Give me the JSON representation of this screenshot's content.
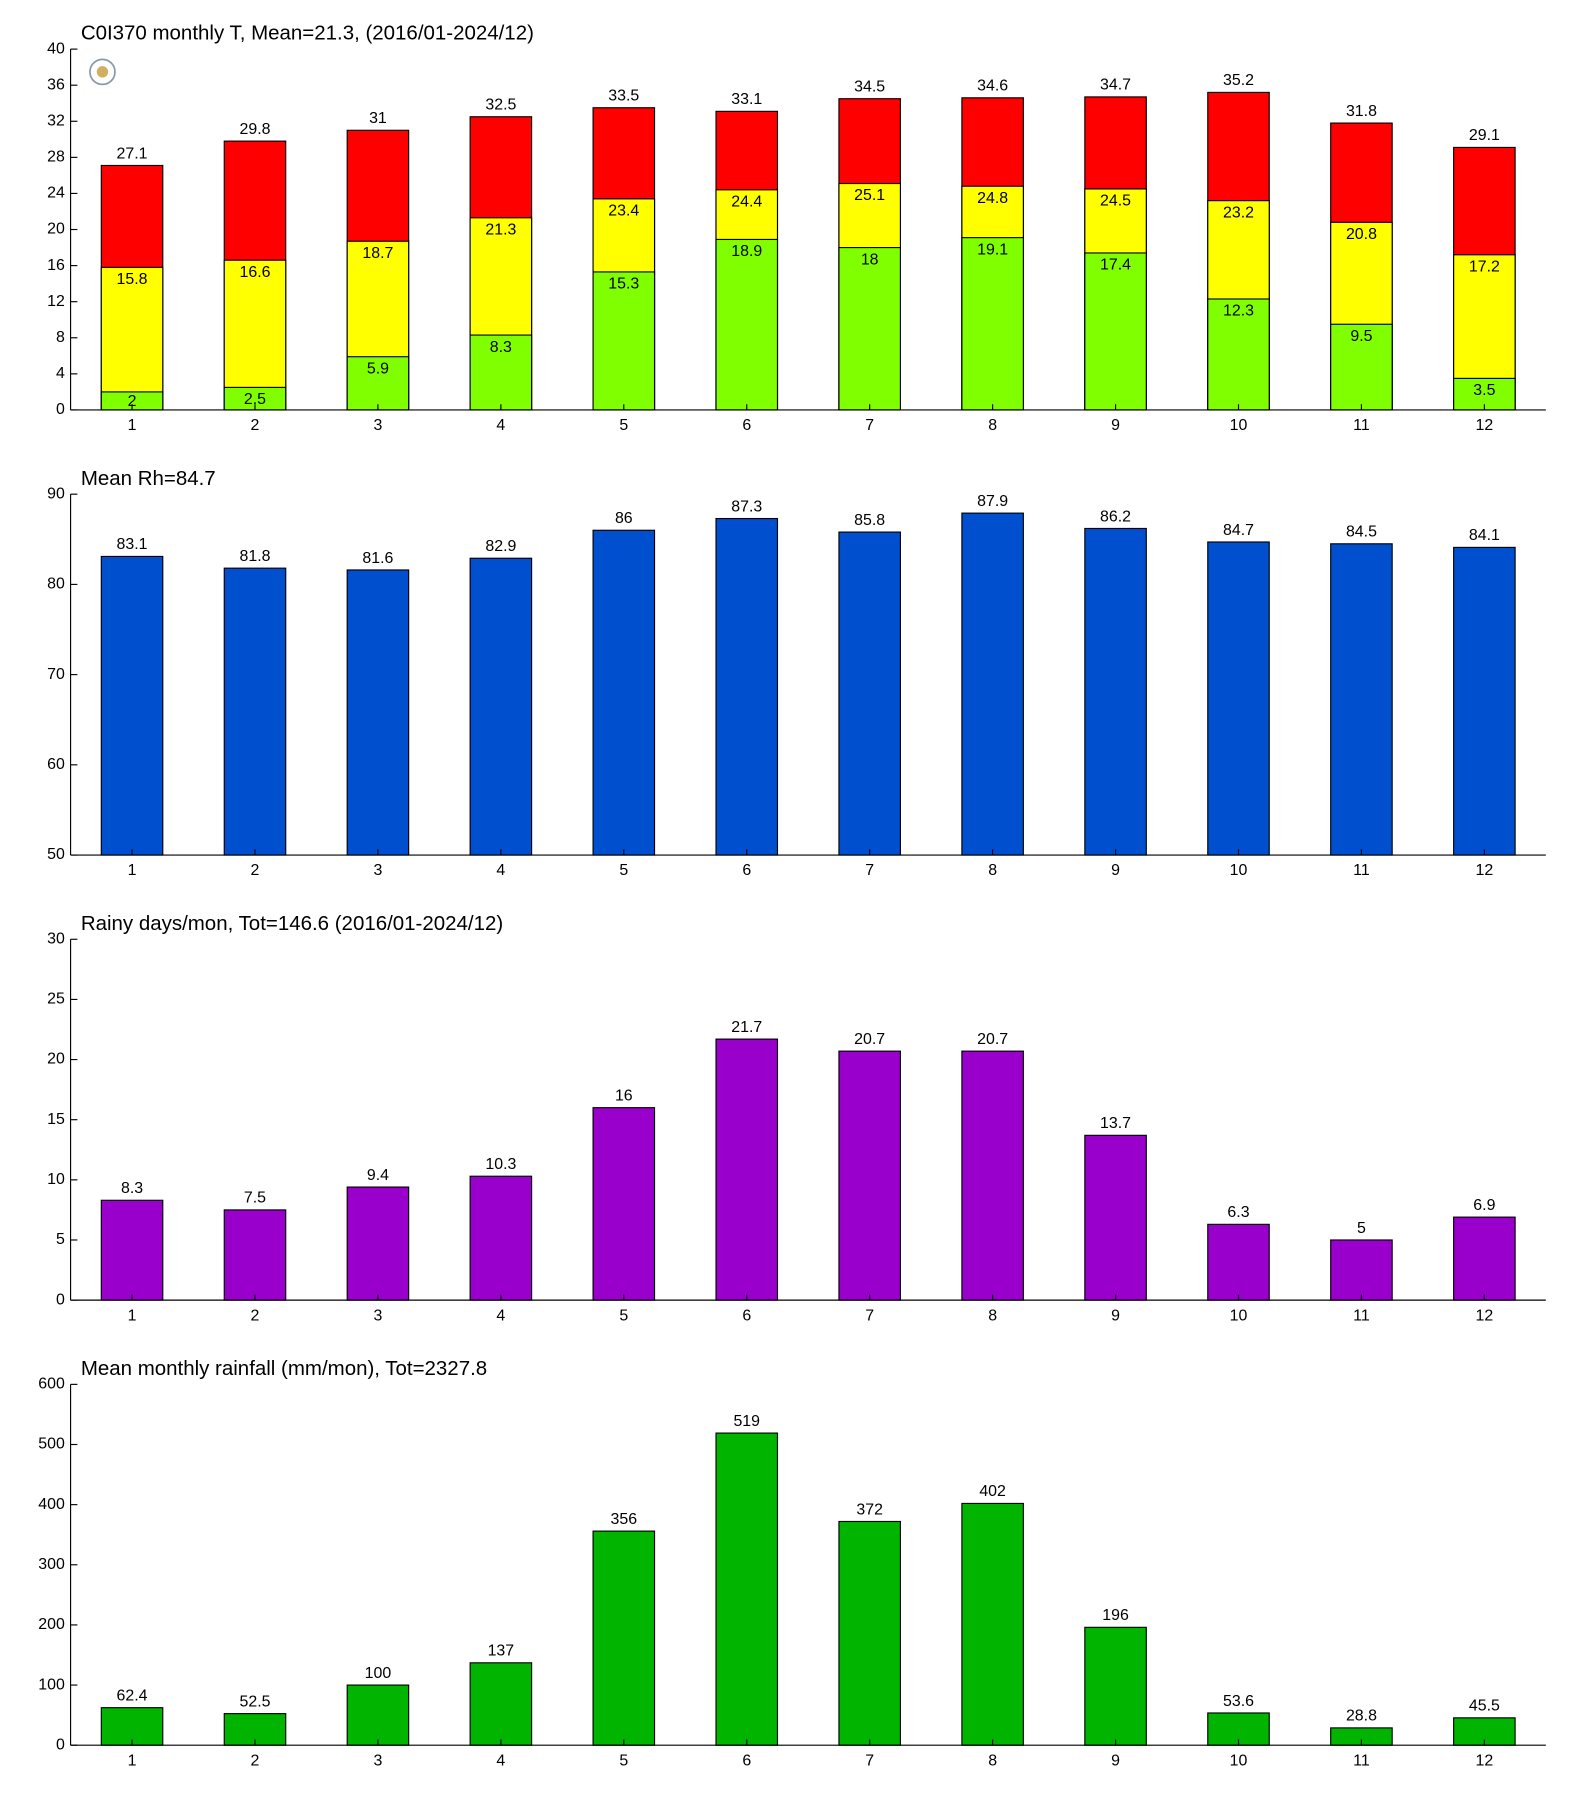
{
  "chart_data": [
    {
      "type": "bar",
      "title": "C0I370 monthly T, Mean=21.3, (2016/01-2024/12)",
      "categories": [
        "1",
        "2",
        "3",
        "4",
        "5",
        "6",
        "7",
        "8",
        "9",
        "10",
        "11",
        "12"
      ],
      "series": [
        {
          "color": "#ff0000",
          "values": [
            27.1,
            29.8,
            31,
            32.5,
            33.5,
            33.1,
            34.5,
            34.6,
            34.7,
            35.2,
            31.8,
            29.1
          ]
        },
        {
          "color": "#ffff00",
          "values": [
            15.8,
            16.6,
            18.7,
            21.3,
            23.4,
            24.4,
            25.1,
            24.8,
            24.5,
            23.2,
            20.8,
            17.2
          ]
        },
        {
          "color": "#80ff00",
          "values": [
            2,
            2.5,
            5.9,
            8.3,
            15.3,
            18.9,
            18,
            19.1,
            17.4,
            12.3,
            9.5,
            3.5
          ]
        }
      ],
      "ylim": [
        0,
        40
      ],
      "yticks": [
        0,
        4,
        8,
        12,
        16,
        20,
        24,
        28,
        32,
        36,
        40
      ]
    },
    {
      "type": "bar",
      "title": "Mean Rh=84.7",
      "categories": [
        "1",
        "2",
        "3",
        "4",
        "5",
        "6",
        "7",
        "8",
        "9",
        "10",
        "11",
        "12"
      ],
      "values": [
        83.1,
        81.8,
        81.6,
        82.9,
        86,
        87.3,
        85.8,
        87.9,
        86.2,
        84.7,
        84.5,
        84.1
      ],
      "color": "#004fcf",
      "ylim": [
        50,
        90
      ],
      "yticks": [
        50,
        60,
        70,
        80,
        90
      ]
    },
    {
      "type": "bar",
      "title": "Rainy days/mon, Tot=146.6 (2016/01-2024/12)",
      "categories": [
        "1",
        "2",
        "3",
        "4",
        "5",
        "6",
        "7",
        "8",
        "9",
        "10",
        "11",
        "12"
      ],
      "values": [
        8.3,
        7.5,
        9.4,
        10.3,
        16,
        21.7,
        20.7,
        20.7,
        13.7,
        6.3,
        5,
        6.9
      ],
      "color": "#9900cc",
      "ylim": [
        0,
        30
      ],
      "yticks": [
        0,
        5,
        10,
        15,
        20,
        25,
        30
      ]
    },
    {
      "type": "bar",
      "title": "Mean monthly rainfall (mm/mon), Tot=2327.8",
      "categories": [
        "1",
        "2",
        "3",
        "4",
        "5",
        "6",
        "7",
        "8",
        "9",
        "10",
        "11",
        "12"
      ],
      "values": [
        62.4,
        52.5,
        100,
        137,
        356,
        519,
        372,
        402,
        196,
        53.6,
        28.8,
        45.5
      ],
      "color": "#00b400",
      "ylim": [
        0,
        600
      ],
      "yticks": [
        0,
        100,
        200,
        300,
        400,
        500,
        600
      ]
    }
  ]
}
